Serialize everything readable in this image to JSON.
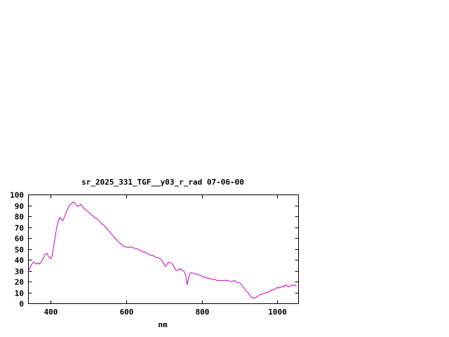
{
  "chart_data": {
    "type": "line",
    "title": "sr_2025_331_TGF__y03_r_rad 07-06-00",
    "xlabel": "nm",
    "ylabel": "",
    "xlim": [
      340,
      1055
    ],
    "ylim": [
      0,
      100
    ],
    "xticks": [
      400,
      600,
      800,
      1000
    ],
    "yticks": [
      0,
      10,
      20,
      30,
      40,
      50,
      60,
      70,
      80,
      90,
      100
    ],
    "grid": false,
    "legend": "none",
    "line_color": "#c000c0",
    "border_color": "#000000",
    "background": "#ffffff",
    "series": [
      {
        "x": [
          340,
          345,
          350,
          355,
          358,
          362,
          366,
          370,
          375,
          380,
          385,
          390,
          393,
          396,
          400,
          403,
          406,
          410,
          415,
          420,
          424,
          428,
          432,
          436,
          440,
          444,
          448,
          452,
          456,
          460,
          464,
          468,
          472,
          476,
          480,
          484,
          488,
          492,
          496,
          500,
          505,
          510,
          515,
          520,
          525,
          530,
          535,
          540,
          545,
          550,
          555,
          560,
          565,
          570,
          575,
          580,
          585,
          590,
          595,
          600,
          605,
          610,
          615,
          620,
          625,
          630,
          635,
          640,
          645,
          650,
          655,
          660,
          665,
          670,
          675,
          680,
          685,
          690,
          695,
          700,
          703,
          706,
          710,
          714,
          718,
          722,
          726,
          730,
          734,
          738,
          742,
          746,
          750,
          754,
          758,
          761,
          764,
          767,
          770,
          775,
          780,
          785,
          790,
          795,
          800,
          805,
          810,
          815,
          820,
          825,
          830,
          835,
          840,
          845,
          850,
          855,
          860,
          865,
          870,
          875,
          880,
          885,
          890,
          895,
          900,
          905,
          910,
          915,
          918,
          922,
          926,
          930,
          934,
          938,
          942,
          946,
          950,
          954,
          958,
          962,
          966,
          970,
          974,
          978,
          982,
          986,
          990,
          994,
          998,
          1002,
          1006,
          1010,
          1014,
          1018,
          1022,
          1026,
          1030,
          1034,
          1038,
          1042,
          1046,
          1050
        ],
        "y": [
          29,
          33,
          36,
          38,
          37,
          36,
          37,
          36,
          38,
          41,
          45,
          46,
          44,
          42,
          41,
          43,
          48,
          57,
          68,
          76,
          79,
          77,
          76,
          79,
          83,
          86,
          89,
          91,
          92,
          93,
          92,
          90,
          89,
          90,
          91,
          89,
          87,
          86,
          85,
          84,
          82,
          81,
          79,
          78,
          77,
          75,
          73,
          72,
          70,
          68,
          66,
          64,
          62,
          60,
          58,
          56,
          55,
          53,
          52,
          52,
          51,
          52,
          51,
          51,
          50,
          50,
          49,
          48,
          47,
          47,
          46,
          45,
          44,
          44,
          43,
          42,
          42,
          41,
          39,
          36,
          34,
          35,
          37,
          38,
          37,
          36,
          34,
          31,
          30,
          31,
          32,
          31,
          30,
          29,
          24,
          17,
          22,
          26,
          28,
          28,
          27,
          27,
          26,
          26,
          25,
          24,
          24,
          23,
          23,
          22,
          22,
          22,
          21,
          21,
          21,
          21,
          21,
          21,
          21,
          20,
          20,
          21,
          20,
          19,
          19,
          17,
          15,
          12,
          11,
          10,
          8,
          6,
          5,
          5,
          5,
          6,
          7,
          8,
          8,
          9,
          9,
          10,
          10,
          11,
          12,
          12,
          13,
          13,
          14,
          15,
          14,
          15,
          16,
          15,
          17,
          16,
          15,
          16,
          17,
          16,
          17,
          16
        ]
      }
    ]
  }
}
